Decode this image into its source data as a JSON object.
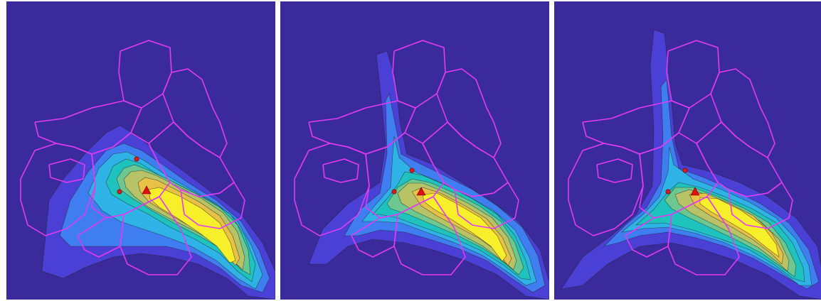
{
  "figure": {
    "panel_count": 3,
    "colors": {
      "background": "#3b2a9c",
      "levels": [
        "#4a40d6",
        "#3f7ef0",
        "#2fb3e6",
        "#1fc3be",
        "#6cc890",
        "#b8c266",
        "#e8c247",
        "#f7ef2a",
        "#fbff1a"
      ],
      "district_boundaries": "#e23bf0",
      "contour_lines": "#222222",
      "source_marker": "#e01010",
      "receptor_marker": "#d02020"
    },
    "panels": [
      {
        "id": "left"
      },
      {
        "id": "middle"
      },
      {
        "id": "right"
      }
    ]
  }
}
